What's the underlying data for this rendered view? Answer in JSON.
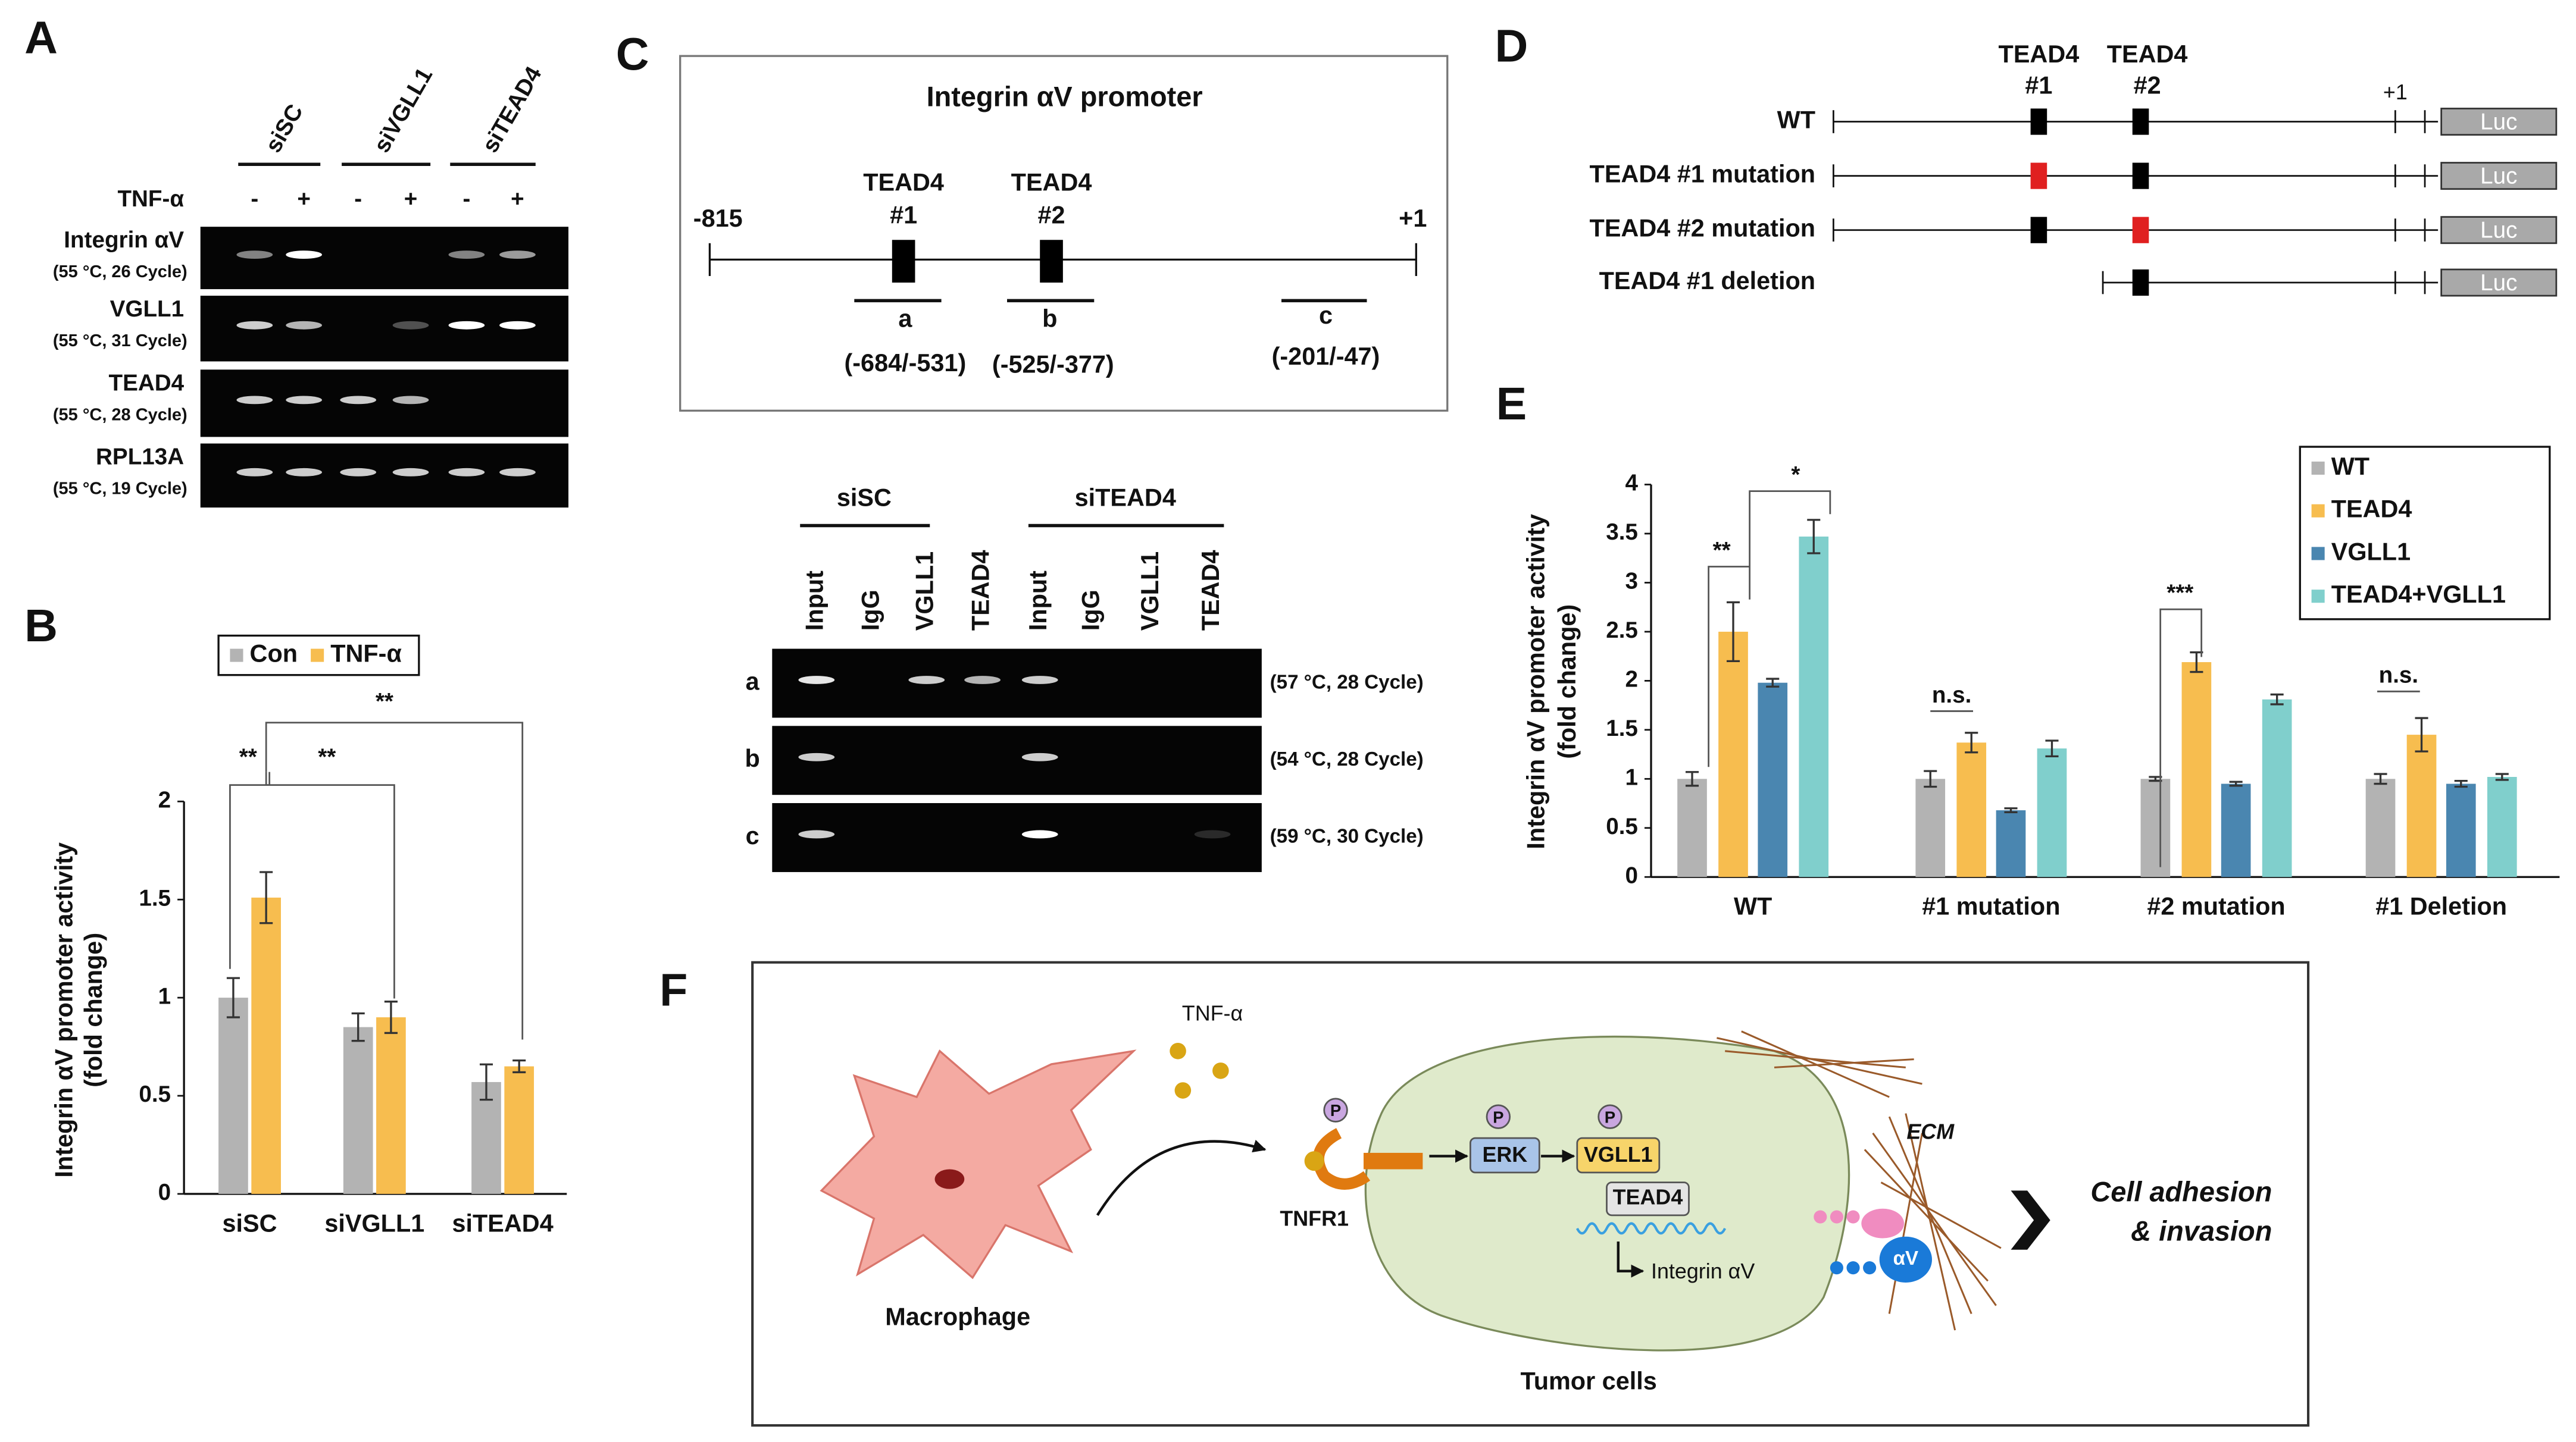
{
  "panel_labels": [
    "A",
    "B",
    "C",
    "D",
    "E",
    "F"
  ],
  "panel_a": {
    "groups": [
      "siSC",
      "siVGLL1",
      "siTEAD4"
    ],
    "treatment": "TNF-α",
    "lanes": [
      "-",
      "+",
      "-",
      "+",
      "-",
      "+"
    ],
    "rows": [
      {
        "gene": "Integrin αV",
        "condition": "(55 °C, 26 Cycle)"
      },
      {
        "gene": "VGLL1",
        "condition": "(55 °C, 31 Cycle)"
      },
      {
        "gene": "TEAD4",
        "condition": "(55 °C, 28 Cycle)"
      },
      {
        "gene": "RPL13A",
        "condition": "(55 °C, 19 Cycle)"
      }
    ]
  },
  "panel_c": {
    "title": "Integrin αV promoter",
    "start": "-815",
    "end": "+1",
    "sites": [
      {
        "name": "TEAD4",
        "number": "#1"
      },
      {
        "name": "TEAD4",
        "number": "#2"
      }
    ],
    "regions": [
      {
        "name": "a",
        "range": "(-684/-531)"
      },
      {
        "name": "b",
        "range": "(-525/-377)"
      },
      {
        "name": "c",
        "range": "(-201/-47)"
      }
    ],
    "groups": [
      "siSC",
      "siTEAD4"
    ],
    "lanes": [
      "Input",
      "IgG",
      "VGLL1",
      "TEAD4",
      "Input",
      "IgG",
      "VGLL1",
      "TEAD4"
    ],
    "rows": [
      {
        "name": "a",
        "condition": "(57 °C, 28 Cycle)"
      },
      {
        "name": "b",
        "condition": "(54 °C, 28 Cycle)"
      },
      {
        "name": "c",
        "condition": "(59 °C, 30 Cycle)"
      }
    ]
  },
  "panel_d": {
    "sites": [
      {
        "name": "TEAD4",
        "number": "#1"
      },
      {
        "name": "TEAD4",
        "number": "#2"
      }
    ],
    "end": "+1",
    "constructs": [
      "WT",
      "TEAD4 #1 mutation",
      "TEAD4 #2 mutation",
      "TEAD4 #1 deletion"
    ],
    "reporter": [
      "Luc",
      "Luc",
      "Luc",
      "Luc"
    ]
  },
  "chart_data": [
    {
      "type": "bar",
      "ylabel": [
        "Integrin αV promoter activity",
        "(fold change)"
      ],
      "categories": [
        "siSC",
        "siVGLL1",
        "siTEAD4"
      ],
      "series": [
        {
          "name": "Con",
          "color": "#b3b3b3",
          "values": [
            1,
            0.85,
            0.57
          ],
          "errors": [
            0.1,
            0.07,
            0.09
          ]
        },
        {
          "name": "TNF-α",
          "color": "#f7bd4f",
          "values": [
            1.51,
            0.9,
            0.65
          ],
          "errors": [
            0.13,
            0.08,
            0.03
          ]
        }
      ],
      "ylim": [
        0,
        2
      ],
      "yticks": [
        0,
        0.5,
        1,
        1.5,
        2
      ],
      "grid": false,
      "annotations": [
        "**",
        "**",
        "**"
      ]
    },
    {
      "type": "bar",
      "ylabel": [
        "Integrin αV promoter activity",
        "(fold change)"
      ],
      "categories": [
        "WT",
        "#1 mutation",
        "#2 mutation",
        "#1 Deletion"
      ],
      "series": [
        {
          "name": "WT",
          "color": "#b3b3b3",
          "values": [
            1,
            1,
            1,
            1
          ],
          "errors": [
            0.07,
            0.08,
            0.02,
            0.05
          ]
        },
        {
          "name": "TEAD4",
          "color": "#f7bd4f",
          "values": [
            2.5,
            1.37,
            2.19,
            1.45
          ],
          "errors": [
            0.3,
            0.1,
            0.1,
            0.17
          ]
        },
        {
          "name": "VGLL1",
          "color": "#4a86b0",
          "values": [
            1.98,
            0.68,
            0.95,
            0.95
          ],
          "errors": [
            0.04,
            0.02,
            0.02,
            0.03
          ]
        },
        {
          "name": "TEAD4+VGLL1",
          "color": "#80cfcc",
          "values": [
            3.47,
            1.31,
            1.81,
            1.02
          ],
          "errors": [
            0.17,
            0.08,
            0.05,
            0.03
          ]
        }
      ],
      "ylim": [
        0,
        4
      ],
      "yticks": [
        0,
        0.5,
        1,
        1.5,
        2,
        2.5,
        3,
        3.5,
        4
      ],
      "grid": false,
      "annotations": [
        "**",
        "*",
        "n.s.",
        "***",
        "n.s."
      ]
    }
  ],
  "panel_f": {
    "stimulus": "TNF-α",
    "macrophage": "Macrophage",
    "receptor": "TNFR1",
    "phospho": [
      "P",
      "P",
      "P"
    ],
    "kinase": "ERK",
    "cofactor": "VGLL1",
    "factor": "TEAD4",
    "target": "Integrin αV",
    "matrix": "ECM",
    "integrin": "αV",
    "cell": "Tumor cells",
    "outcome": [
      "Cell adhesion",
      "& invasion"
    ]
  }
}
